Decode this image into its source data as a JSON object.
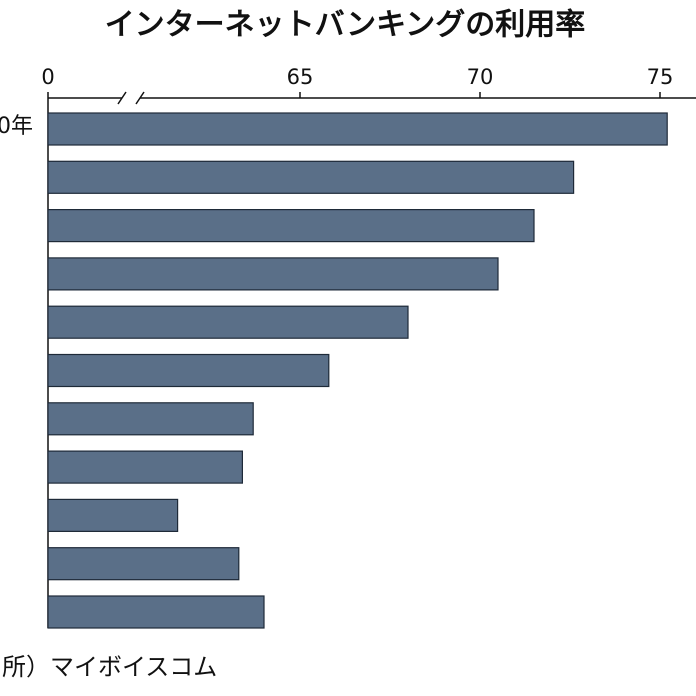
{
  "chart_data": {
    "type": "bar",
    "orientation": "horizontal",
    "title": "インターネットバンキングの利用率",
    "source": "出所）マイボイスコム",
    "categories": [
      "0年",
      null,
      null,
      null,
      null,
      null,
      null,
      null,
      null,
      null,
      null
    ],
    "values": [
      75.2,
      72.6,
      71.5,
      70.5,
      68.0,
      65.8,
      63.7,
      63.4,
      61.6,
      63.3,
      64.0
    ],
    "color": "#5a6f88",
    "xlim": [
      0,
      76
    ],
    "axis_break": [
      0,
      58
    ],
    "xticks": [
      0,
      65,
      70,
      75
    ]
  }
}
